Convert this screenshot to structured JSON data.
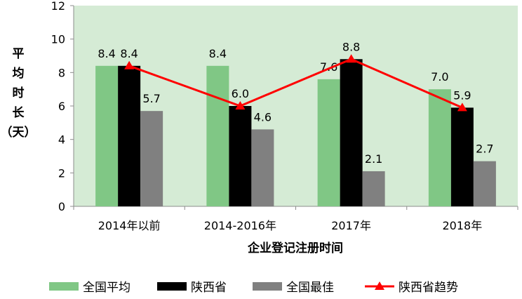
{
  "chart_data": {
    "type": "bar",
    "categories": [
      "2014年以前",
      "2014-2016年",
      "2017年",
      "2018年"
    ],
    "series": [
      {
        "name": "全国平均",
        "type": "bar",
        "color": "#80c785",
        "values": [
          8.4,
          8.4,
          7.6,
          7.0
        ],
        "labels": [
          "8.4",
          "8.4",
          "7.6",
          "7.0"
        ]
      },
      {
        "name": "陕西省",
        "type": "bar",
        "color": "#000000",
        "values": [
          8.4,
          6.0,
          8.8,
          5.9
        ],
        "labels": [
          "8.4",
          "6.0",
          "8.8",
          "5.9"
        ]
      },
      {
        "name": "全国最佳",
        "type": "bar",
        "color": "#808080",
        "values": [
          5.7,
          4.6,
          2.1,
          2.7
        ],
        "labels": [
          "5.7",
          "4.6",
          "2.1",
          "2.7"
        ]
      },
      {
        "name": "陕西省趋势",
        "type": "line",
        "color": "#ff0000",
        "marker": "triangle",
        "values": [
          8.4,
          6.0,
          8.8,
          5.9
        ]
      }
    ],
    "xlabel": "企业登记注册时间",
    "ylabel": "平均时长（天）",
    "ylim": [
      0,
      12
    ],
    "yticks": [
      "0",
      "2",
      "4",
      "6",
      "8",
      "10",
      "12"
    ],
    "grid": false,
    "legend_position": "bottom",
    "plot_background": "#d5ebd5"
  }
}
